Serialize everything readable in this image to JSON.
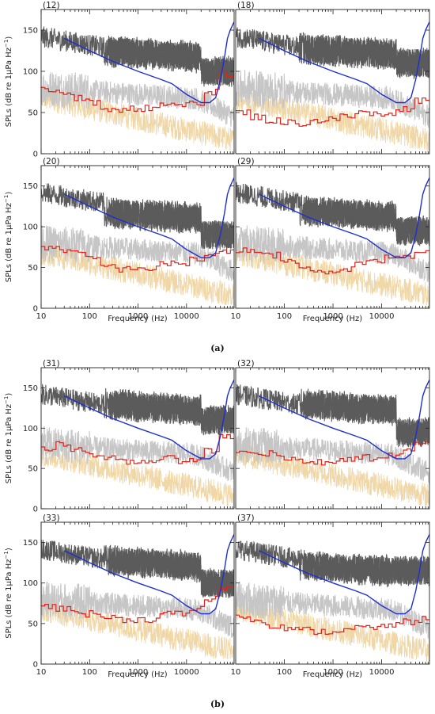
{
  "figure_labels": [
    "(a)",
    "(b)"
  ],
  "chart_data": {
    "type": "line",
    "x_scale": "log",
    "xlim": [
      10,
      96000
    ],
    "ylim": [
      0,
      175
    ],
    "xlabel": "Frequency (Hz)",
    "ylabel": "SPLs (dB re 1μPa Hz",
    "ylabel_superscript": "−1",
    "ylabel_close": ")",
    "x_ticks": [
      10,
      100,
      1000,
      10000
    ],
    "x_tick_labels": [
      "10",
      "100",
      "1000",
      "10000"
    ],
    "y_ticks": [
      0,
      50,
      100,
      150
    ],
    "y_tick_labels": [
      "0",
      "50",
      "100",
      "150"
    ],
    "series_colors": {
      "dark_spectrum": "#5b5b5b",
      "light_spectrum": "#c6c6c6",
      "tan_spectrum": "#f0d7a8",
      "red_line": "#e2231a",
      "blue_line": "#1f2fcf"
    },
    "blue_line": {
      "x": [
        30,
        100,
        300,
        1000,
        3000,
        5000,
        10000,
        20000,
        30000,
        40000,
        50000,
        60000,
        70000,
        80000,
        96000
      ],
      "y": [
        140,
        125,
        112,
        100,
        90,
        85,
        72,
        62,
        62,
        68,
        90,
        115,
        140,
        150,
        160
      ]
    },
    "panels": [
      {
        "label": "(12)",
        "dark": {
          "start": 2000,
          "mid": 125,
          "end": 100
        },
        "red": [
          78,
          74,
          68,
          63,
          55,
          52,
          55,
          55,
          62,
          58,
          62,
          75,
          95
        ]
      },
      {
        "label": "(18)",
        "dark": {
          "start": 2000,
          "mid": 128,
          "end": 110
        },
        "red": [
          50,
          45,
          40,
          38,
          37,
          40,
          42,
          45,
          50,
          48,
          50,
          55,
          65
        ]
      },
      {
        "label": "(20)",
        "dark": {
          "start": 2000,
          "mid": 118,
          "end": 90
        },
        "red": [
          75,
          72,
          68,
          60,
          52,
          48,
          50,
          48,
          55,
          55,
          60,
          65,
          68
        ]
      },
      {
        "label": "(29)",
        "dark": {
          "start": 2000,
          "mid": 120,
          "end": 95
        },
        "red": [
          72,
          70,
          65,
          58,
          52,
          48,
          45,
          48,
          55,
          58,
          62,
          65,
          70
        ]
      },
      {
        "label": "(31)",
        "dark": {
          "start": 2000,
          "mid": 130,
          "end": 110
        },
        "red": [
          75,
          80,
          75,
          68,
          62,
          58,
          58,
          60,
          62,
          60,
          62,
          72,
          90
        ]
      },
      {
        "label": "(32)",
        "dark": {
          "start": 2000,
          "mid": 130,
          "end": 95
        },
        "red": [
          72,
          70,
          68,
          62,
          58,
          58,
          60,
          60,
          65,
          62,
          65,
          72,
          80
        ]
      },
      {
        "label": "(33)",
        "dark": {
          "start": 2000,
          "mid": 128,
          "end": 100
        },
        "red": [
          72,
          68,
          65,
          62,
          58,
          55,
          55,
          55,
          62,
          62,
          68,
          80,
          95
        ]
      },
      {
        "label": "(37)",
        "dark": {
          "start": 2000,
          "mid": 122,
          "end": 115
        },
        "red": [
          58,
          55,
          48,
          45,
          42,
          40,
          40,
          42,
          45,
          45,
          48,
          52,
          55
        ]
      }
    ]
  }
}
